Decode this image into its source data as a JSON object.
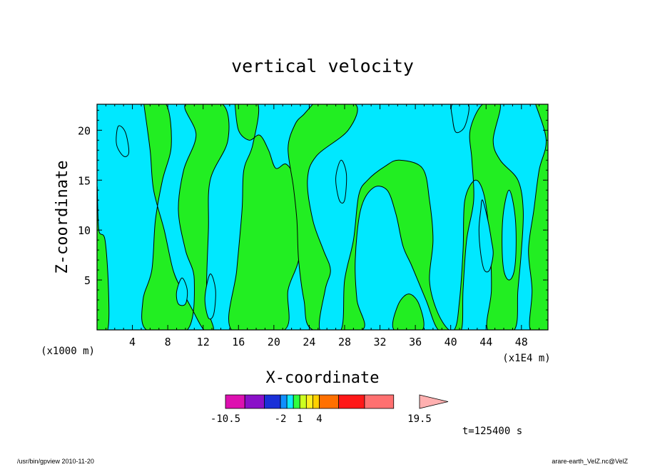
{
  "chart_data": {
    "type": "heatmap",
    "title": "vertical velocity",
    "xlabel": "X-coordinate",
    "ylabel": "Z-coordinate",
    "x_unit_left": "(x1000 m)",
    "x_unit_right": "(x1E4 m)",
    "x_ticks": [
      "4",
      "8",
      "12",
      "16",
      "20",
      "24",
      "28",
      "32",
      "36",
      "40",
      "44",
      "48"
    ],
    "x_tick_values": [
      4,
      8,
      12,
      16,
      20,
      24,
      28,
      32,
      36,
      40,
      44,
      48
    ],
    "y_ticks": [
      "5",
      "10",
      "15",
      "20"
    ],
    "y_tick_values": [
      5,
      10,
      15,
      20
    ],
    "xlim": [
      0,
      51
    ],
    "ylim": [
      0,
      22.6
    ],
    "fields": {
      "positive_color": "#22ee22",
      "negative_color": "#00e8ff",
      "contour_color": "#000000"
    },
    "positive_regions": [
      [
        [
          0,
          0
        ],
        [
          1.2,
          0
        ],
        [
          1.3,
          4
        ],
        [
          0.9,
          9
        ],
        [
          0.2,
          10
        ],
        [
          0,
          14
        ]
      ],
      [
        [
          5.3,
          22.6
        ],
        [
          7.8,
          22.6
        ],
        [
          8.4,
          18.5
        ],
        [
          7.4,
          15
        ],
        [
          6.6,
          11
        ],
        [
          6.2,
          6
        ],
        [
          5.2,
          3
        ],
        [
          5.6,
          0
        ],
        [
          10.2,
          0
        ],
        [
          11,
          5
        ],
        [
          10,
          8
        ],
        [
          9.2,
          12
        ],
        [
          9.8,
          16
        ],
        [
          11.2,
          19.5
        ],
        [
          10,
          22.6
        ],
        [
          14.2,
          22.6
        ],
        [
          14.8,
          19
        ],
        [
          12.8,
          15
        ],
        [
          12.6,
          10
        ],
        [
          12.4,
          3
        ],
        [
          13.2,
          0
        ],
        [
          12.1,
          0
        ],
        [
          10.8,
          2
        ],
        [
          9.6,
          4
        ],
        [
          8.6,
          6
        ],
        [
          7.6,
          10
        ],
        [
          6.4,
          14
        ],
        [
          6.0,
          18
        ],
        [
          5.3,
          22.6
        ]
      ],
      [
        [
          15.6,
          22.6
        ],
        [
          18.2,
          22.6
        ],
        [
          17.6,
          18.5
        ],
        [
          16.6,
          16
        ],
        [
          16.4,
          12
        ],
        [
          15.8,
          6
        ],
        [
          15.2,
          0
        ],
        [
          21.2,
          0
        ],
        [
          21.6,
          4
        ],
        [
          22.8,
          7
        ],
        [
          23.2,
          11
        ],
        [
          22.4,
          15
        ],
        [
          21.4,
          16.6
        ],
        [
          20.2,
          16.2
        ],
        [
          19.4,
          18
        ],
        [
          18.4,
          19.5
        ],
        [
          17.2,
          19
        ],
        [
          16.0,
          20
        ],
        [
          15.6,
          22.6
        ]
      ],
      [
        [
          24.4,
          22.6
        ],
        [
          29.2,
          22.6
        ],
        [
          28.4,
          20
        ],
        [
          24.8,
          17.4
        ],
        [
          23.8,
          15
        ],
        [
          24.4,
          11
        ],
        [
          25.6,
          8
        ],
        [
          26.4,
          6
        ],
        [
          25.8,
          4
        ],
        [
          25.2,
          0
        ],
        [
          27.6,
          0
        ],
        [
          28,
          5
        ],
        [
          29,
          9
        ],
        [
          29.6,
          13.5
        ],
        [
          30.6,
          15
        ],
        [
          32.6,
          16.4
        ],
        [
          34.2,
          17
        ],
        [
          36.8,
          16.2
        ],
        [
          37.6,
          13
        ],
        [
          38,
          9
        ],
        [
          37.6,
          5
        ],
        [
          38.4,
          2
        ],
        [
          39.8,
          0
        ],
        [
          41.2,
          0
        ],
        [
          41.4,
          4
        ],
        [
          41.8,
          9
        ],
        [
          42.6,
          13
        ],
        [
          42.4,
          17
        ],
        [
          42.2,
          20
        ],
        [
          43.6,
          22.6
        ],
        [
          45.6,
          22.6
        ],
        [
          44.8,
          19
        ],
        [
          45.6,
          17
        ],
        [
          47.6,
          15
        ],
        [
          48.2,
          12
        ],
        [
          48,
          8
        ],
        [
          47.6,
          4
        ],
        [
          47.2,
          0
        ],
        [
          44.2,
          0
        ],
        [
          44.6,
          4
        ],
        [
          44.4,
          9
        ],
        [
          43.8,
          13.4
        ],
        [
          42.8,
          15
        ],
        [
          41.6,
          13
        ],
        [
          41.4,
          8
        ],
        [
          41,
          3
        ],
        [
          40.4,
          0
        ],
        [
          38.6,
          0
        ],
        [
          37.2,
          3
        ],
        [
          35.6,
          6.4
        ],
        [
          34.6,
          8.4
        ],
        [
          33.8,
          11.6
        ],
        [
          32.8,
          14
        ],
        [
          31.2,
          14.2
        ],
        [
          29.8,
          12
        ],
        [
          29.2,
          7
        ],
        [
          29.4,
          3
        ],
        [
          30,
          0
        ],
        [
          24.4,
          0
        ],
        [
          23.4,
          3
        ],
        [
          22.8,
          7
        ],
        [
          22.6,
          11
        ],
        [
          22.2,
          14.4
        ],
        [
          21.6,
          18.2
        ],
        [
          22.4,
          20.6
        ],
        [
          23.4,
          21.6
        ],
        [
          24.4,
          22.6
        ]
      ],
      [
        [
          49.6,
          22.6
        ],
        [
          51,
          22.6
        ],
        [
          51,
          0
        ],
        [
          49,
          0
        ],
        [
          49.2,
          4
        ],
        [
          48.8,
          8
        ],
        [
          49.4,
          12
        ],
        [
          50,
          16
        ],
        [
          50.8,
          19
        ],
        [
          49.6,
          22.6
        ]
      ],
      [
        [
          33.6,
          0
        ],
        [
          36.8,
          0
        ],
        [
          36.4,
          2.6
        ],
        [
          35.2,
          3.6
        ],
        [
          34,
          2.4
        ]
      ]
    ],
    "negative_regions": [
      [
        [
          40.2,
          22.6
        ],
        [
          42,
          22.6
        ],
        [
          41.6,
          20.4
        ],
        [
          40.6,
          19.8
        ],
        [
          40.2,
          21.2
        ]
      ],
      [
        [
          43.6,
          13
        ],
        [
          44.2,
          11
        ],
        [
          44.6,
          9
        ],
        [
          44.8,
          7.6
        ],
        [
          44.4,
          6
        ],
        [
          43.8,
          6
        ],
        [
          43.4,
          7.6
        ],
        [
          43.2,
          10
        ],
        [
          43.4,
          12
        ]
      ],
      [
        [
          46.6,
          14
        ],
        [
          47.2,
          12
        ],
        [
          47.4,
          9
        ],
        [
          47.2,
          6
        ],
        [
          46.6,
          5
        ],
        [
          46,
          6
        ],
        [
          45.8,
          9
        ],
        [
          46,
          12
        ]
      ],
      [
        [
          27.6,
          17
        ],
        [
          28.2,
          15.6
        ],
        [
          28,
          13
        ],
        [
          27.4,
          13
        ],
        [
          27,
          15.2
        ]
      ],
      [
        [
          2.4,
          20.4
        ],
        [
          3.2,
          19.8
        ],
        [
          3.6,
          17.8
        ],
        [
          3,
          17.4
        ],
        [
          2.2,
          18.6
        ]
      ],
      [
        [
          12.8,
          5.6
        ],
        [
          13.4,
          4
        ],
        [
          13.2,
          1.6
        ],
        [
          12.6,
          1.2
        ],
        [
          12.2,
          3.2
        ]
      ],
      [
        [
          9.6,
          5.2
        ],
        [
          10.2,
          4
        ],
        [
          10,
          2.6
        ],
        [
          9.2,
          2.6
        ],
        [
          9,
          3.8
        ]
      ]
    ],
    "colorbar": {
      "tick_labels": [
        "-10.5",
        "-2",
        "1",
        "4",
        "19.5"
      ],
      "tick_values": [
        -10.5,
        -2,
        1,
        4,
        19.5
      ],
      "levels": [
        -10.5,
        -7.5,
        -4.5,
        -2,
        -1,
        0,
        1,
        2,
        3,
        4,
        7,
        11,
        15.5,
        19.5
      ],
      "colors": [
        "#dd10b0",
        "#8a10c8",
        "#1a30d8",
        "#1090ff",
        "#10e8ff",
        "#30ff40",
        "#ccff20",
        "#ffee20",
        "#ffd000",
        "#ff7000",
        "#ff1818",
        "#ff7070",
        "#ffb0b0"
      ]
    },
    "time_label": "t=125400 s"
  },
  "footer": {
    "left": "/usr/bin/gpview   2010-11-20",
    "right": "arare-earth_VelZ.nc@VelZ"
  }
}
